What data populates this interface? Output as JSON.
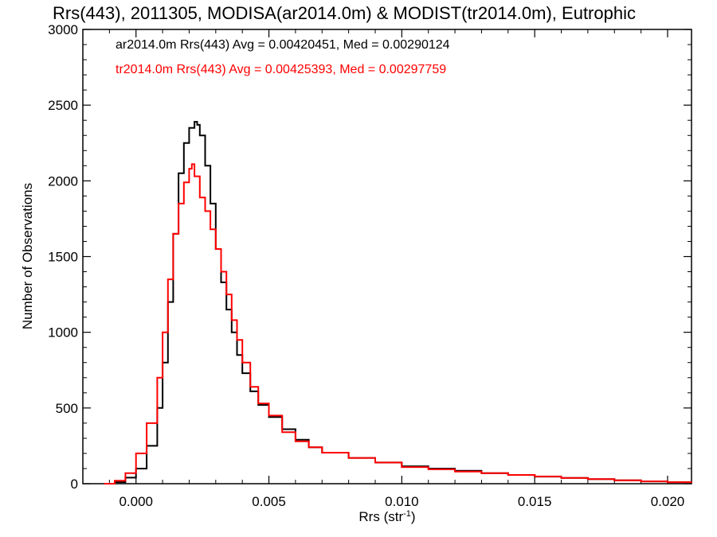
{
  "chart_data": {
    "type": "line",
    "title": "Rrs(443), 2011305, MODISA(ar2014.0m) & MODIST(tr2014.0m), Eutrophic",
    "xlabel": "Rrs (str",
    "xlabel_sup": "-1",
    "xlabel_suffix": ")",
    "ylabel": "Number of Observations",
    "xlim": [
      -0.002,
      0.0209
    ],
    "ylim": [
      0,
      3000
    ],
    "xticks": [
      "0.000",
      "0.005",
      "0.010",
      "0.015",
      "0.020"
    ],
    "xtick_values": [
      0.0,
      0.005,
      0.01,
      0.015,
      0.02
    ],
    "yticks": [
      "0",
      "500",
      "1000",
      "1500",
      "2000",
      "2500",
      "3000"
    ],
    "ytick_values": [
      0,
      500,
      1000,
      1500,
      2000,
      2500,
      3000
    ],
    "grid": false,
    "legend_placement": "top-left",
    "series": [
      {
        "name": "ar2014.0m Rrs(443) Avg = 0.00420451, Med = 0.00290124",
        "color": "#000000",
        "x": [
          -0.0012,
          -0.0008,
          -0.0004,
          0.0,
          0.0004,
          0.0008,
          0.001,
          0.0012,
          0.0014,
          0.0016,
          0.0018,
          0.002,
          0.0022,
          0.0023,
          0.0024,
          0.0026,
          0.0028,
          0.003,
          0.0032,
          0.0034,
          0.0036,
          0.0038,
          0.004,
          0.0043,
          0.0046,
          0.005,
          0.0055,
          0.006,
          0.0065,
          0.007,
          0.008,
          0.009,
          0.01,
          0.011,
          0.012,
          0.013,
          0.014,
          0.015,
          0.016,
          0.017,
          0.018,
          0.019,
          0.02,
          0.0209
        ],
        "y": [
          0,
          10,
          40,
          100,
          250,
          500,
          800,
          1200,
          1650,
          2050,
          2250,
          2350,
          2390,
          2370,
          2300,
          2100,
          1850,
          1550,
          1330,
          1150,
          1000,
          850,
          730,
          610,
          520,
          440,
          360,
          290,
          240,
          205,
          170,
          140,
          115,
          100,
          85,
          70,
          58,
          47,
          38,
          30,
          22,
          15,
          10,
          6
        ]
      },
      {
        "name": "tr2014.0m Rrs(443) Avg = 0.00425393, Med = 0.00297759",
        "color": "#ff0000",
        "x": [
          -0.0012,
          -0.0008,
          -0.0004,
          0.0,
          0.0004,
          0.0008,
          0.001,
          0.0012,
          0.0014,
          0.0016,
          0.0018,
          0.002,
          0.0021,
          0.0022,
          0.0024,
          0.0026,
          0.0028,
          0.003,
          0.0032,
          0.0034,
          0.0036,
          0.0038,
          0.004,
          0.0043,
          0.0046,
          0.005,
          0.0055,
          0.006,
          0.0065,
          0.007,
          0.008,
          0.009,
          0.01,
          0.011,
          0.012,
          0.013,
          0.014,
          0.015,
          0.016,
          0.017,
          0.018,
          0.019,
          0.02,
          0.0209
        ],
        "y": [
          0,
          20,
          70,
          200,
          400,
          700,
          1000,
          1350,
          1650,
          1850,
          1990,
          2080,
          2110,
          2030,
          1890,
          1800,
          1680,
          1550,
          1400,
          1250,
          1080,
          950,
          800,
          640,
          530,
          450,
          340,
          280,
          240,
          205,
          170,
          140,
          110,
          95,
          80,
          70,
          58,
          48,
          38,
          30,
          22,
          15,
          10,
          6
        ]
      }
    ]
  }
}
